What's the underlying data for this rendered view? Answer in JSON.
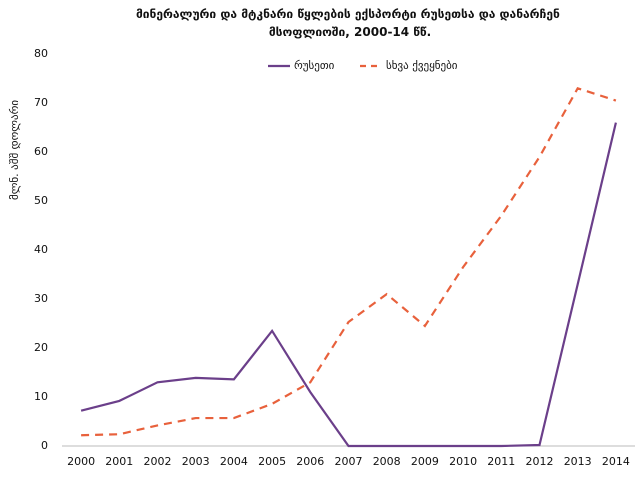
{
  "chart_data": {
    "type": "line",
    "title": [
      "მინერალური და მტკნარი წყლების ექსპორტი რუსეთსა და დანარჩენ",
      "მსოფლიოში, 2000-14 წწ."
    ],
    "y_label": "მლნ. აშშ დოლარი",
    "categories": [
      "2000",
      "2001",
      "2002",
      "2003",
      "2004",
      "2005",
      "2006",
      "2007",
      "2008",
      "2009",
      "2010",
      "2011",
      "2012",
      "2013",
      "2014"
    ],
    "series": [
      {
        "name": "რუსეთი",
        "color": "#6b3f8a",
        "dashed": false,
        "values": [
          7.2,
          9.2,
          13,
          13.9,
          13.6,
          23.5,
          11,
          0,
          0,
          0,
          0,
          0,
          0.2,
          33,
          66
        ]
      },
      {
        "name": "სხვა ქვეყნები",
        "color": "#e8613c",
        "dashed": true,
        "values": [
          2.2,
          2.4,
          4.2,
          5.7,
          5.7,
          8.6,
          13,
          25.3,
          31,
          24.5,
          36.5,
          47,
          59,
          73,
          70.5
        ]
      }
    ],
    "ylim": [
      0,
      80
    ],
    "yticks": [
      0,
      10,
      20,
      30,
      40,
      50,
      60,
      70,
      80
    ],
    "grid": false,
    "legend": "top"
  }
}
